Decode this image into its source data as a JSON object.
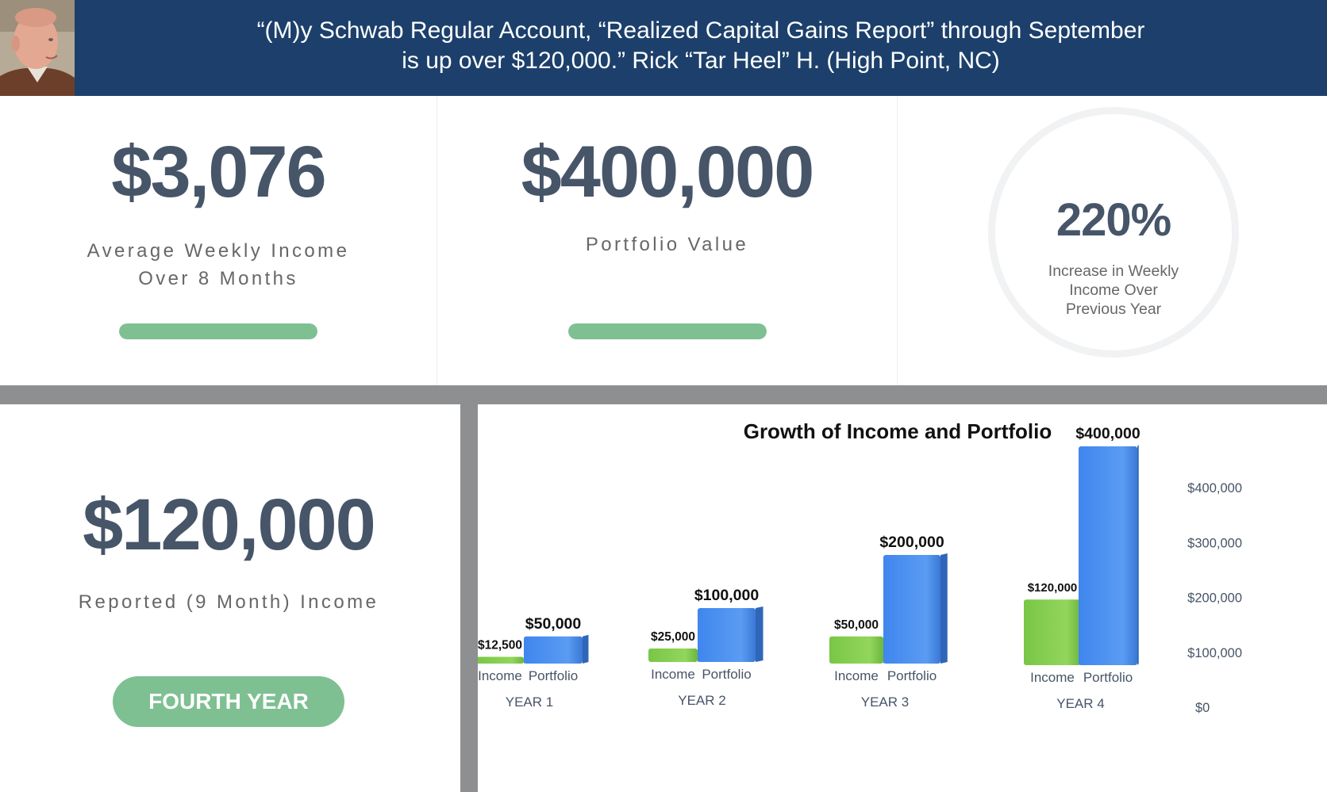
{
  "header": {
    "quote_line1": "“(M)y Schwab Regular Account, “Realized Capital Gains Report” through September",
    "quote_line2": "is up over $120,000.” Rick “Tar Heel” H. (High Point, NC)"
  },
  "stats": {
    "weekly_income": {
      "value": "$3,076",
      "label_line1": "Average Weekly Income",
      "label_line2": "Over 8 Months",
      "progress_pct": 100
    },
    "portfolio": {
      "value": "$400,000",
      "label": "Portfolio Value",
      "progress_pct": 100
    },
    "increase": {
      "value": "220%",
      "label_line1": "Increase in Weekly",
      "label_line2": "Income Over",
      "label_line3": "Previous Year"
    }
  },
  "reported": {
    "value": "$120,000",
    "label": "Reported (9 Month) Income",
    "badge": "FOURTH YEAR"
  },
  "colors": {
    "header_bg": "#1c406b",
    "accent_green": "#7ec092",
    "income_bar": "#86cf4e",
    "portfolio_bar": "#4a8ef0",
    "divider": "#8e8f91"
  },
  "chart_data": {
    "type": "bar",
    "title": "Growth of Income and Portfolio",
    "categories": [
      "YEAR 1",
      "YEAR 2",
      "YEAR 3",
      "YEAR 4"
    ],
    "bar_labels": [
      "Income",
      "Portfolio"
    ],
    "series": [
      {
        "name": "Income",
        "values": [
          12500,
          25000,
          50000,
          120000
        ],
        "labels": [
          "$12,500",
          "$25,000",
          "$50,000",
          "$120,000"
        ]
      },
      {
        "name": "Portfolio",
        "values": [
          50000,
          100000,
          200000,
          400000
        ],
        "labels": [
          "$50,000",
          "$100,000",
          "$200,000",
          "$400,000"
        ]
      }
    ],
    "y_ticks": [
      0,
      100000,
      200000,
      300000,
      400000
    ],
    "y_tick_labels": [
      "$0",
      "$100,000",
      "$200,000",
      "$300,000",
      "$400,000"
    ],
    "ylim": [
      0,
      400000
    ],
    "y_axis_position": "right",
    "grid": false
  }
}
